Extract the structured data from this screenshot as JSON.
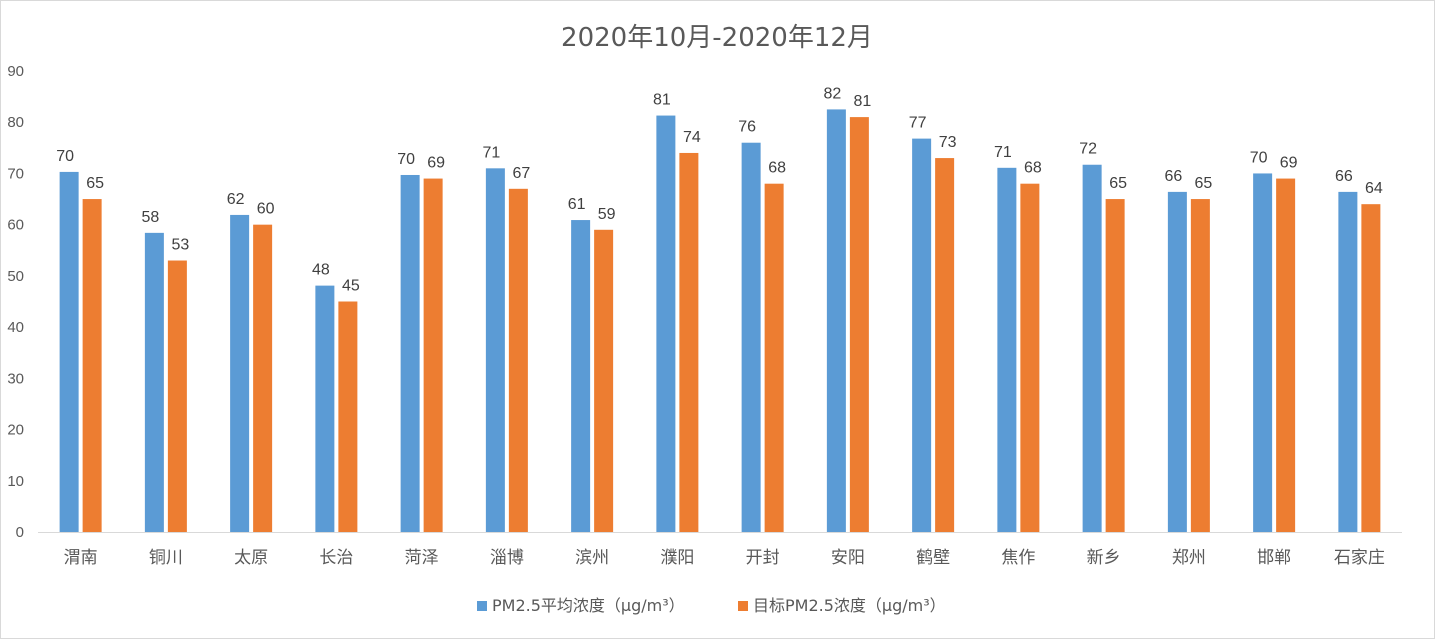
{
  "chart_data": {
    "type": "bar",
    "title": "2020年10月-2020年12月",
    "categories": [
      "渭南",
      "铜川",
      "太原",
      "长治",
      "菏泽",
      "淄博",
      "滨州",
      "濮阳",
      "开封",
      "安阳",
      "鹤壁",
      "焦作",
      "新乡",
      "郑州",
      "邯郸",
      "石家庄"
    ],
    "series": [
      {
        "name": "PM2.5平均浓度（μg/m³）",
        "color": "#5b9bd5",
        "values": [
          70.3,
          58.4,
          61.9,
          48.1,
          69.7,
          71.0,
          60.9,
          81.3,
          76.0,
          82.5,
          76.8,
          71.1,
          71.7,
          66.4,
          70.0,
          66.4
        ],
        "labels": [
          "70",
          "58",
          "62",
          "48",
          "70",
          "71",
          "61",
          "81",
          "76",
          "82",
          "77",
          "71",
          "72",
          "66",
          "70",
          "66"
        ]
      },
      {
        "name": "目标PM2.5浓度（μg/m³）",
        "color": "#ed7d31",
        "values": [
          65,
          53,
          60,
          45,
          69,
          67,
          59,
          74,
          68,
          81,
          73,
          68,
          65,
          65,
          69,
          64
        ],
        "labels": [
          "65",
          "53",
          "60",
          "45",
          "69",
          "67",
          "59",
          "74",
          "68",
          "81",
          "73",
          "68",
          "65",
          "65",
          "69",
          "64"
        ]
      }
    ],
    "yticks": [
      "0",
      "10",
      "20",
      "30",
      "40",
      "50",
      "60",
      "70",
      "80",
      "90"
    ],
    "ylim": [
      0,
      90
    ],
    "xlabel": "",
    "ylabel": "",
    "grid": false,
    "legend_position": "bottom"
  }
}
